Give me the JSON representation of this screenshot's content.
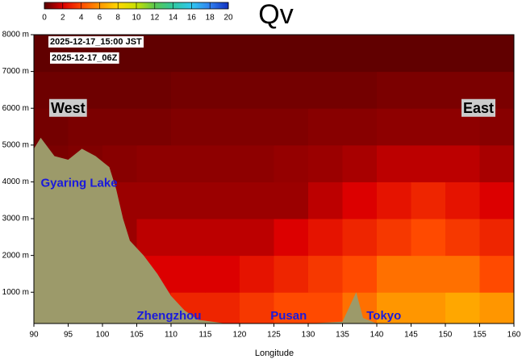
{
  "chart_data": {
    "type": "cross-section",
    "title": "Qv",
    "time_local": "2025-12-17_15:00 JST",
    "time_utc": "2025-12-17_06Z",
    "x_label": "Longitude",
    "left_label": "West",
    "right_label": "East",
    "places": [
      {
        "name": "Gyaring Lake",
        "lon": 91,
        "height": 3950
      },
      {
        "name": "Zhengzhou",
        "lon": 105,
        "height": 350
      },
      {
        "name": "Pusan",
        "lon": 124.5,
        "height": 350
      },
      {
        "name": "Tokyo",
        "lon": 138.5,
        "height": 350
      }
    ],
    "xlim": [
      90,
      160
    ],
    "xticks": [
      90,
      95,
      100,
      105,
      110,
      115,
      120,
      125,
      130,
      135,
      140,
      145,
      150,
      155,
      160
    ],
    "ylim": [
      150,
      8000
    ],
    "yticks": [
      {
        "value": 1000,
        "label": "1000 m"
      },
      {
        "value": 2000,
        "label": "2000 m"
      },
      {
        "value": 3000,
        "label": "3000 m"
      },
      {
        "value": 4000,
        "label": "4000 m"
      },
      {
        "value": 5000,
        "label": "5000 m"
      },
      {
        "value": 6000,
        "label": "6000 m"
      },
      {
        "value": 7000,
        "label": "7000 m"
      },
      {
        "value": 8000,
        "label": "8000 m"
      }
    ],
    "colorbar": {
      "lim": [
        0,
        20
      ],
      "ticks": [
        0,
        2,
        4,
        6,
        8,
        10,
        12,
        14,
        16,
        18,
        20
      ],
      "colormap": [
        "#5a0000",
        "#dc0000",
        "#ff4a00",
        "#ff9600",
        "#ffd800",
        "#c8e000",
        "#5ac850",
        "#30c8a0",
        "#30c8f0",
        "#3080f0",
        "#1030c0"
      ]
    },
    "field": {
      "lon_edges": [
        90,
        95,
        100,
        105,
        110,
        115,
        120,
        125,
        130,
        135,
        140,
        145,
        150,
        155,
        160
      ],
      "height_edges": [
        0,
        1000,
        2000,
        3000,
        4000,
        5000,
        6000,
        7000,
        8000
      ],
      "values": [
        [
          2,
          2,
          2,
          2.5,
          3,
          3,
          3.5,
          4,
          4,
          5,
          6,
          6,
          6.5,
          6
        ],
        [
          1.5,
          1.5,
          1.5,
          2,
          2,
          2,
          2.5,
          3,
          3.5,
          4,
          5,
          5,
          5,
          4
        ],
        [
          1,
          1,
          1,
          1.5,
          1.5,
          1.5,
          1.5,
          2,
          2.5,
          3,
          3.5,
          4,
          3.5,
          3
        ],
        [
          0.8,
          0.8,
          1,
          1,
          1,
          1,
          1,
          1,
          1.5,
          2,
          2.5,
          3,
          2.5,
          2
        ],
        [
          0.5,
          0.6,
          0.7,
          0.8,
          0.8,
          0.8,
          0.8,
          0.9,
          1,
          1.2,
          1.5,
          1.5,
          1.5,
          1.2
        ],
        [
          0.4,
          0.5,
          0.5,
          0.5,
          0.6,
          0.6,
          0.6,
          0.6,
          0.7,
          0.7,
          0.8,
          0.8,
          0.8,
          0.7
        ],
        [
          0.3,
          0.3,
          0.3,
          0.3,
          0.4,
          0.4,
          0.4,
          0.4,
          0.4,
          0.4,
          0.5,
          0.5,
          0.5,
          0.5
        ],
        [
          0.1,
          0.1,
          0.1,
          0.1,
          0.1,
          0.1,
          0.1,
          0.1,
          0.1,
          0.1,
          0.1,
          0.1,
          0.1,
          0.1
        ]
      ]
    },
    "terrain": {
      "color": "#9c9a6a",
      "x": [
        90,
        91,
        93,
        95,
        97,
        99,
        101,
        102,
        103,
        104,
        106,
        108,
        110,
        112,
        114,
        118,
        130,
        135,
        137,
        138,
        140,
        160
      ],
      "height": [
        4900,
        5200,
        4700,
        4600,
        4900,
        4700,
        4400,
        3800,
        3000,
        2400,
        2000,
        1500,
        900,
        500,
        250,
        150,
        150,
        200,
        1000,
        300,
        150,
        150
      ]
    }
  }
}
